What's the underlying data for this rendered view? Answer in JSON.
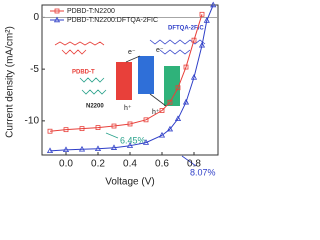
{
  "chart_data": {
    "type": "line",
    "xlabel": "Voltage (V)",
    "ylabel": "Current density (mA/cm²)",
    "x": [
      -0.1,
      0,
      0.1,
      0.2,
      0.3,
      0.4,
      0.5,
      0.6,
      0.65,
      0.7,
      0.75,
      0.8,
      0.85,
      0.88,
      0.92
    ],
    "series": [
      {
        "name": "PDBD-T:N2200",
        "color": "#e8403a",
        "marker": "square",
        "values": [
          -11.0,
          -10.85,
          -10.75,
          -10.65,
          -10.5,
          -10.3,
          -9.9,
          -9.0,
          -8.2,
          -6.8,
          -4.8,
          -2.2,
          0.3,
          null,
          null
        ]
      },
      {
        "name": "PDBD-T:N2200:DFTQA-2FIC",
        "color": "#2f3fc8",
        "marker": "triangle",
        "values": [
          -12.9,
          -12.8,
          -12.75,
          -12.7,
          -12.6,
          -12.4,
          -12.1,
          -11.4,
          -10.8,
          -9.8,
          -8.2,
          -5.8,
          -2.7,
          -0.3,
          1.2
        ]
      }
    ],
    "xlim": [
      -0.15,
      0.95
    ],
    "ylim": [
      -13.3,
      1.2
    ],
    "xticks": [
      {
        "value": 0,
        "label": "0.0"
      },
      0.2,
      0.4,
      0.6,
      0.8
    ],
    "yticks": [
      -10,
      -5,
      0
    ],
    "zero_line": true,
    "annotations": [
      {
        "text": "6.45%",
        "color": "#27a18a"
      },
      {
        "text": "8.07%",
        "color": "#2f3fc8"
      }
    ],
    "inset_labels": [
      "PDBD-T",
      "DFTQA-2FIC",
      "N2200",
      "e⁻",
      "e⁻",
      "h⁺",
      "h⁺"
    ]
  }
}
